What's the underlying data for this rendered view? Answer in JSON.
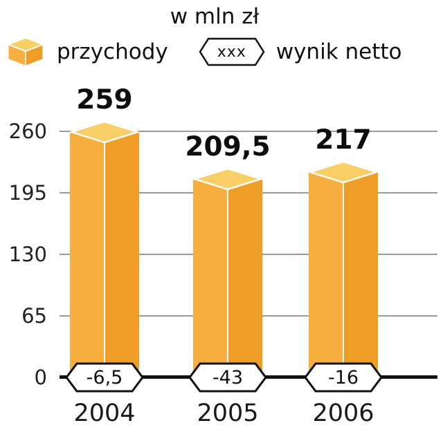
{
  "title": "w mln zł",
  "legend": {
    "bars_label": "przychody",
    "hex_label": "wynik netto",
    "hex_icon_text": "xxx"
  },
  "colors": {
    "bar_left_face": "#F6AF3E",
    "bar_right_face": "#EE9E27",
    "bar_top_face": "#F9CE66",
    "gridline": "#9a9a9a",
    "axis_line": "#111111",
    "badge_fill": "#ffffff",
    "badge_stroke": "#111111"
  },
  "chart_data": {
    "type": "bar",
    "title": "w mln zł",
    "categories": [
      "2004",
      "2005",
      "2006"
    ],
    "series": [
      {
        "name": "przychody",
        "values": [
          259,
          209.5,
          217
        ]
      },
      {
        "name": "wynik netto",
        "values": [
          -6.5,
          -43,
          -16
        ]
      }
    ],
    "value_labels": [
      "259",
      "209,5",
      "217"
    ],
    "net_labels": [
      "-6,5",
      "-43",
      "-16"
    ],
    "yticks": [
      0,
      65,
      130,
      195,
      260
    ],
    "ylim": [
      0,
      260
    ],
    "xlabel": "",
    "ylabel": "",
    "grid": "horizontal",
    "legend_position": "top"
  }
}
